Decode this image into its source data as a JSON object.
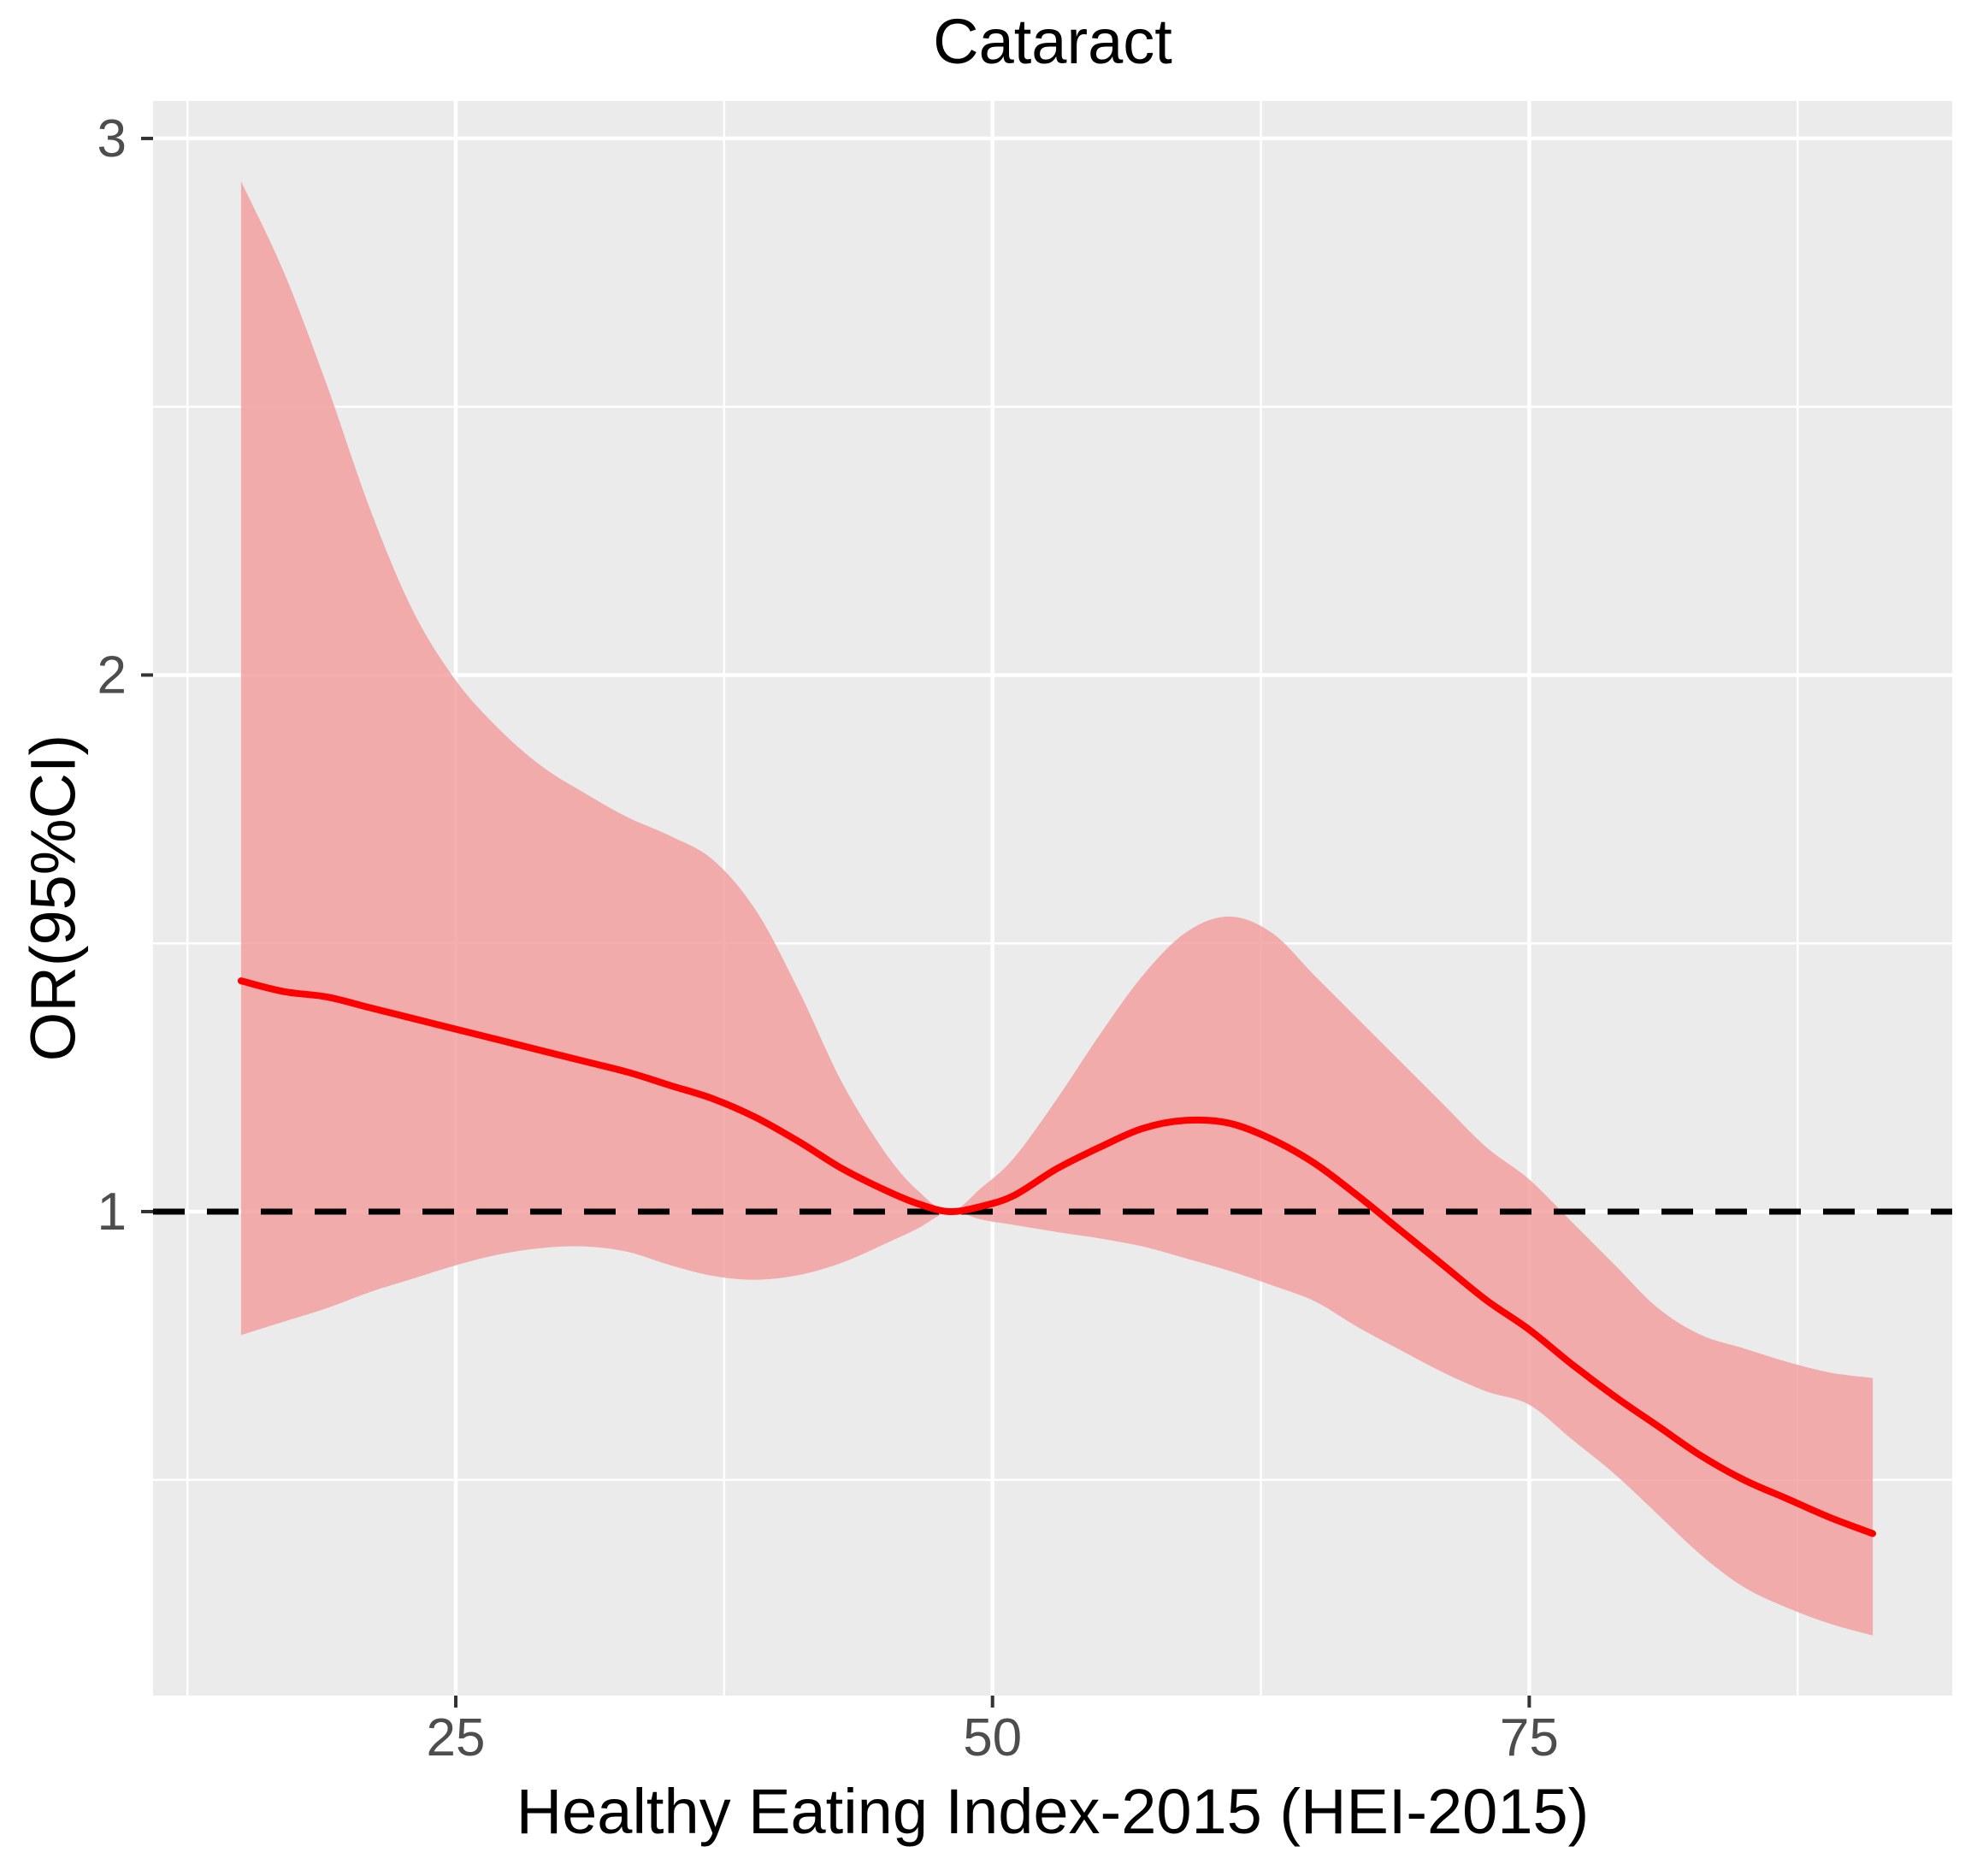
{
  "title": "Cataract",
  "axes": {
    "x_title": "Healthy Eating Index-2015 (HEI-2015)",
    "y_title": "OR(95%CI)",
    "x_tick_labels": [
      "25",
      "50",
      "75"
    ],
    "y_tick_labels": [
      "1",
      "2",
      "3"
    ]
  },
  "colors": {
    "panel_bg": "#EBEBEB",
    "gridline": "#FFFFFF",
    "band_fill": "#F2A0A0",
    "band_opacity": 0.85,
    "or_line": "#FF0000",
    "reference_line": "#000000",
    "tick_mark": "#333333",
    "tick_label": "#4D4D4D",
    "text": "#000000"
  },
  "chart_data": {
    "type": "line",
    "title": "Cataract",
    "xlabel": "Healthy Eating Index-2015 (HEI-2015)",
    "ylabel": "OR(95%CI)",
    "x": [
      15,
      17,
      19,
      21,
      23,
      25,
      27,
      29,
      31,
      33,
      35,
      37,
      39,
      41,
      43,
      45,
      46.5,
      48,
      49.5,
      51,
      53,
      55,
      57,
      59,
      61,
      63,
      65,
      67,
      69,
      71,
      73,
      75,
      77,
      79,
      81,
      83,
      85,
      87,
      89,
      91
    ],
    "series": [
      {
        "name": "OR",
        "values": [
          1.43,
          1.41,
          1.4,
          1.38,
          1.36,
          1.34,
          1.32,
          1.3,
          1.28,
          1.26,
          1.235,
          1.21,
          1.175,
          1.13,
          1.08,
          1.04,
          1.015,
          1.0,
          1.01,
          1.03,
          1.08,
          1.12,
          1.155,
          1.17,
          1.165,
          1.135,
          1.09,
          1.03,
          0.965,
          0.9,
          0.835,
          0.78,
          0.715,
          0.655,
          0.6,
          0.545,
          0.5,
          0.465,
          0.43,
          0.4
        ]
      },
      {
        "name": "upper_95CI",
        "values": [
          2.92,
          2.75,
          2.54,
          2.31,
          2.12,
          1.99,
          1.9,
          1.83,
          1.78,
          1.735,
          1.7,
          1.655,
          1.56,
          1.41,
          1.24,
          1.11,
          1.04,
          1.0,
          1.045,
          1.1,
          1.21,
          1.33,
          1.44,
          1.52,
          1.55,
          1.52,
          1.44,
          1.36,
          1.28,
          1.2,
          1.12,
          1.06,
          0.98,
          0.9,
          0.82,
          0.77,
          0.745,
          0.72,
          0.7,
          0.69
        ]
      },
      {
        "name": "lower_95CI",
        "values": [
          0.77,
          0.795,
          0.82,
          0.85,
          0.875,
          0.9,
          0.92,
          0.932,
          0.935,
          0.925,
          0.9,
          0.88,
          0.873,
          0.882,
          0.905,
          0.94,
          0.968,
          1.0,
          0.985,
          0.975,
          0.962,
          0.95,
          0.935,
          0.913,
          0.89,
          0.863,
          0.833,
          0.785,
          0.742,
          0.7,
          0.665,
          0.64,
          0.575,
          0.51,
          0.435,
          0.36,
          0.3,
          0.262,
          0.232,
          0.21
        ]
      }
    ],
    "reference_line_y": 1,
    "x_breaks": [
      25,
      50,
      75
    ],
    "x_minor_breaks": [
      12.5,
      37.5,
      62.5,
      87.5
    ],
    "y_breaks": [
      1,
      2,
      3
    ],
    "y_minor_breaks": [
      0.5,
      1.5,
      2.5
    ],
    "xlim": [
      10.9,
      94.7
    ],
    "ylim": [
      0.098,
      3.07
    ],
    "grid": "on",
    "legend_position": "none"
  }
}
